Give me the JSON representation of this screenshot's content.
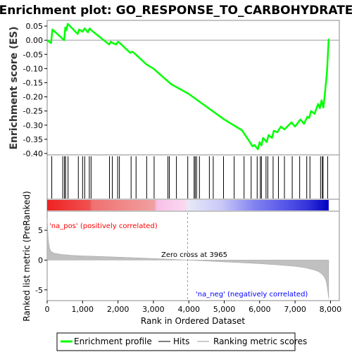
{
  "chart_data": {
    "type": "line",
    "title": "Enrichment plot: GO_RESPONSE_TO_CARBOHYDRATE",
    "es_panel": {
      "ylabel": "Enrichment score (ES)",
      "ylim": [
        -0.405,
        0.07
      ],
      "yticks": [
        0.05,
        0.0,
        -0.05,
        -0.1,
        -0.15,
        -0.2,
        -0.25,
        -0.3,
        -0.35,
        -0.4
      ],
      "ytick_labels": [
        "0.05",
        "0.00",
        "-0.05",
        "-0.10",
        "-0.15",
        "-0.20",
        "-0.25",
        "-0.30",
        "-0.35",
        "-0.40"
      ],
      "profile_x": [
        0,
        110,
        150,
        480,
        510,
        540,
        580,
        860,
        900,
        1000,
        1060,
        1150,
        1200,
        1250,
        1750,
        1800,
        1850,
        1950,
        2000,
        2050,
        2350,
        2400,
        2500,
        2800,
        3000,
        3500,
        4000,
        4500,
        5000,
        5500,
        5700,
        5800,
        5850,
        5950,
        6000,
        6050,
        6100,
        6200,
        6250,
        6350,
        6400,
        6500,
        6600,
        6700,
        6900,
        7000,
        7150,
        7250,
        7350,
        7400,
        7450,
        7550,
        7650,
        7700,
        7750,
        7800,
        7850,
        7900,
        7950
      ],
      "profile_y": [
        0.0,
        -0.01,
        0.038,
        0.0,
        0.045,
        0.035,
        0.058,
        0.022,
        0.038,
        0.03,
        0.042,
        0.028,
        0.042,
        0.035,
        -0.015,
        -0.005,
        -0.01,
        -0.015,
        -0.005,
        -0.01,
        -0.045,
        -0.04,
        -0.05,
        -0.085,
        -0.1,
        -0.155,
        -0.19,
        -0.235,
        -0.28,
        -0.318,
        -0.355,
        -0.375,
        -0.37,
        -0.385,
        -0.36,
        -0.372,
        -0.345,
        -0.36,
        -0.335,
        -0.345,
        -0.32,
        -0.325,
        -0.305,
        -0.315,
        -0.29,
        -0.305,
        -0.28,
        -0.295,
        -0.27,
        -0.275,
        -0.25,
        -0.26,
        -0.225,
        -0.24,
        -0.212,
        -0.238,
        -0.178,
        -0.115,
        0.005
      ]
    },
    "hits_panel": {
      "hit_positions": [
        130,
        440,
        490,
        520,
        590,
        880,
        1000,
        1060,
        1190,
        1240,
        1760,
        1840,
        1990,
        2040,
        2370,
        2510,
        2810,
        3020,
        3410,
        3450,
        3650,
        3970,
        4150,
        4180,
        4220,
        4300,
        4580,
        4690,
        4980,
        5280,
        5560,
        5760,
        5930,
        6020,
        6050,
        6180,
        6230,
        6380,
        6530,
        6700,
        6920,
        7130,
        7330,
        7420,
        7720,
        7770,
        7790,
        7920
      ]
    },
    "metric_panel": {
      "ylabel": "Ranked list metric (PreRanked)",
      "ylim": [
        -6.8,
        8.2
      ],
      "yticks": [
        5,
        0,
        -5
      ],
      "ytick_labels": [
        "5",
        "0",
        "-5"
      ],
      "zero_cross": 3965,
      "zero_cross_label": "Zero cross at 3965",
      "pos_label": "'na_pos' (positively correlated)",
      "neg_label": "'na_neg' (negatively correlated)",
      "metric_x": [
        0,
        10,
        30,
        60,
        100,
        200,
        400,
        700,
        1000,
        1500,
        2000,
        2500,
        3000,
        3500,
        3965,
        4500,
        5000,
        5500,
        6000,
        6500,
        7000,
        7300,
        7500,
        7650,
        7750,
        7820,
        7870,
        7900,
        7930,
        7950
      ],
      "metric_y": [
        7.0,
        5.8,
        3.5,
        2.2,
        1.5,
        1.15,
        0.95,
        0.8,
        0.7,
        0.6,
        0.5,
        0.38,
        0.26,
        0.13,
        0.0,
        -0.15,
        -0.3,
        -0.45,
        -0.6,
        -0.8,
        -1.05,
        -1.3,
        -1.6,
        -1.9,
        -2.3,
        -2.8,
        -3.4,
        -4.2,
        -5.5,
        -6.5
      ]
    },
    "xlabel": "Rank in Ordered Dataset",
    "xlim": [
      0,
      8250
    ],
    "xticks": [
      0,
      1000,
      2000,
      3000,
      4000,
      5000,
      6000,
      7000,
      8000
    ],
    "xtick_labels": [
      "0",
      "1,000",
      "2,000",
      "3,000",
      "4,000",
      "5,000",
      "6,000",
      "7,000",
      "8,000"
    ],
    "n_genes": 7950,
    "legend": {
      "placement": "bottom",
      "entries": [
        {
          "name": "Enrichment profile",
          "color": "#00ff00"
        },
        {
          "name": "Hits",
          "color": "#7f7f7f"
        },
        {
          "name": "Ranking metric scores",
          "color": "#cccccc"
        }
      ]
    },
    "colors": {
      "profile": "#00ff00",
      "hit": "#000000",
      "metric": "#c0c0c0",
      "grid": "#999999",
      "pos_text": "#ff0000",
      "neg_text": "#0000ff",
      "panel_border": "#888888"
    }
  }
}
